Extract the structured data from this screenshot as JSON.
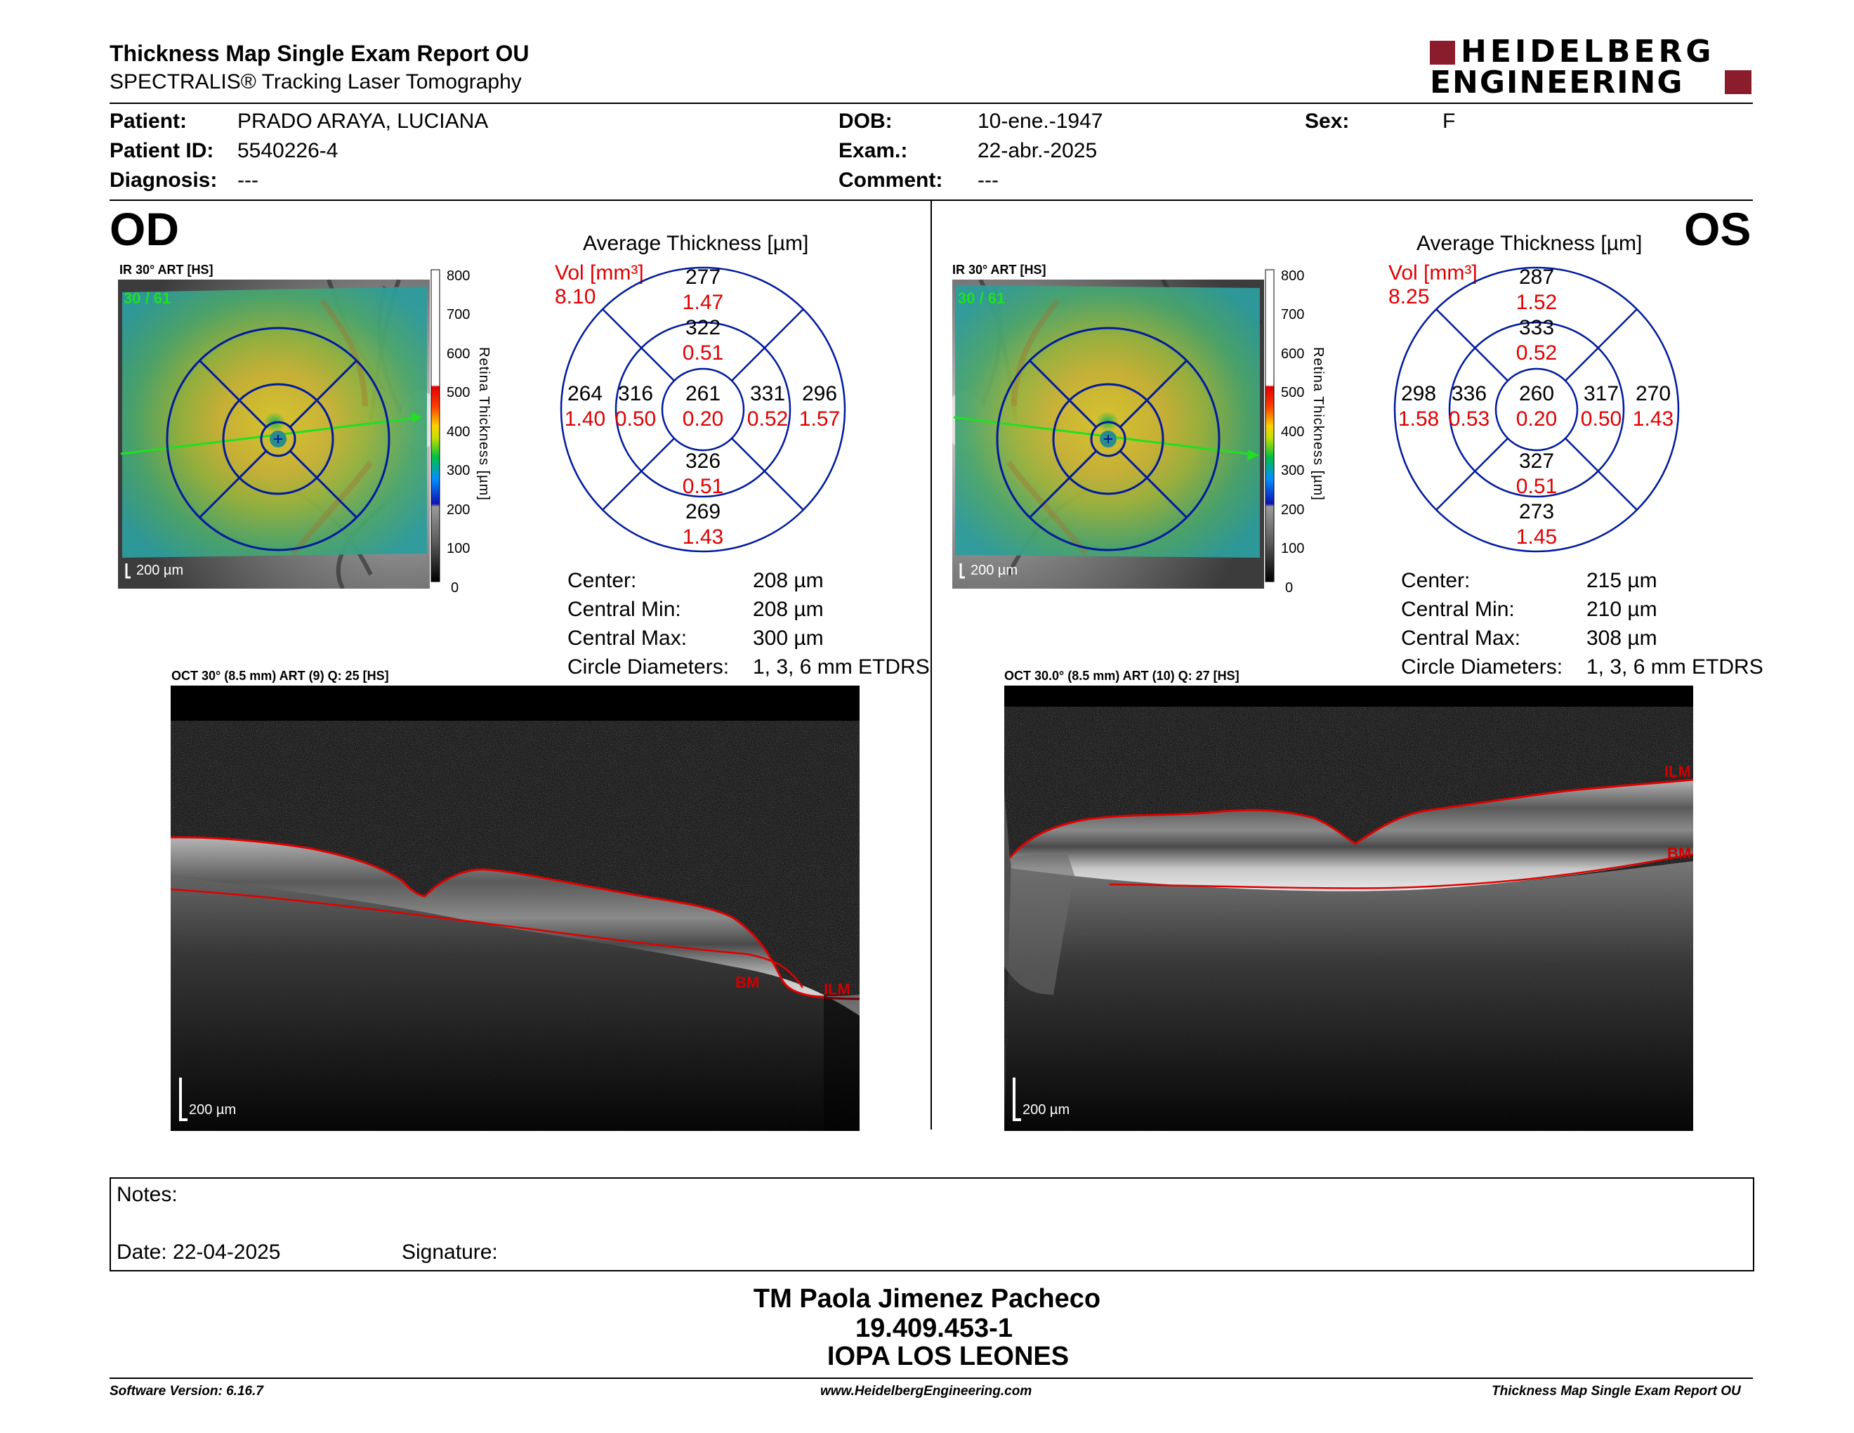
{
  "header": {
    "title": "Thickness Map Single Exam Report OU",
    "subtitle": "SPECTRALIS® Tracking Laser Tomography",
    "logo_line1": "HEIDELBERG",
    "logo_line2": "ENGINEERING",
    "brand_color": "#8b1c2c"
  },
  "patient": {
    "patient_label": "Patient:",
    "patient_value": "PRADO ARAYA, LUCIANA",
    "id_label": "Patient ID:",
    "id_value": "5540226-4",
    "diag_label": "Diagnosis:",
    "diag_value": "---",
    "dob_label": "DOB:",
    "dob_value": "10-ene.-1947",
    "exam_label": "Exam.:",
    "exam_value": "22-abr.-2025",
    "comment_label": "Comment:",
    "comment_value": "---",
    "sex_label": "Sex:",
    "sex_value": "F"
  },
  "od": {
    "eye": "OD",
    "ir_caption": "IR 30° ART [HS]",
    "ir_counter": "30 / 61",
    "ir_scale": "200 µm",
    "avg_title": "Average Thickness [µm]",
    "vol_label": "Vol [mm³]",
    "vol_value": "8.10",
    "etdrs": {
      "top": [
        "277",
        "1.47"
      ],
      "inner_top": [
        "322",
        "0.51"
      ],
      "left": [
        "264",
        "1.40"
      ],
      "inner_left": [
        "316",
        "0.50"
      ],
      "center": [
        "261",
        "0.20"
      ],
      "inner_right": [
        "331",
        "0.52"
      ],
      "right": [
        "296",
        "1.57"
      ],
      "inner_bottom": [
        "326",
        "0.51"
      ],
      "bottom": [
        "269",
        "1.43"
      ]
    },
    "stats": {
      "center_label": "Center:",
      "center_value": "208 µm",
      "min_label": "Central Min:",
      "min_value": "208 µm",
      "max_label": "Central Max:",
      "max_value": "300 µm",
      "circ_label": "Circle Diameters:",
      "circ_value": "1, 3, 6 mm ETDRS"
    },
    "oct_caption": "OCT 30° (8.5 mm) ART (9) Q: 25 [HS]",
    "oct_scale": "200 µm",
    "layer_ilm": "ILM",
    "layer_bm": "BM"
  },
  "os": {
    "eye": "OS",
    "ir_caption": "IR 30° ART [HS]",
    "ir_counter": "30 / 61",
    "ir_scale": "200 µm",
    "avg_title": "Average Thickness [µm]",
    "vol_label": "Vol [mm³]",
    "vol_value": "8.25",
    "etdrs": {
      "top": [
        "287",
        "1.52"
      ],
      "inner_top": [
        "333",
        "0.52"
      ],
      "left": [
        "298",
        "1.58"
      ],
      "inner_left": [
        "336",
        "0.53"
      ],
      "center": [
        "260",
        "0.20"
      ],
      "inner_right": [
        "317",
        "0.50"
      ],
      "right": [
        "270",
        "1.43"
      ],
      "inner_bottom": [
        "327",
        "0.51"
      ],
      "bottom": [
        "273",
        "1.45"
      ]
    },
    "stats": {
      "center_label": "Center:",
      "center_value": "215 µm",
      "min_label": "Central Min:",
      "min_value": "210 µm",
      "max_label": "Central Max:",
      "max_value": "308 µm",
      "circ_label": "Circle Diameters:",
      "circ_value": "1, 3, 6 mm ETDRS"
    },
    "oct_caption": "OCT 30.0° (8.5 mm) ART (10) Q: 27 [HS]",
    "oct_scale": "200 µm",
    "layer_ilm": "ILM",
    "layer_bm": "BM"
  },
  "colorbar": {
    "ticks": [
      "800",
      "700",
      "600",
      "500",
      "400",
      "300",
      "200",
      "100",
      "0"
    ],
    "axis_label": "Retina Thickness [µm]"
  },
  "notes": {
    "notes_label": "Notes:",
    "date_label": "Date: 22-04-2025",
    "signature_label": "Signature:"
  },
  "signature": {
    "name": "TM Paola Jimenez Pacheco",
    "rut": "19.409.453-1",
    "institution": "IOPA LOS LEONES"
  },
  "footer": {
    "software": "Software Version: 6.16.7",
    "website": "www.HeidelbergEngineering.com",
    "report_name": "Thickness Map Single Exam Report OU"
  }
}
